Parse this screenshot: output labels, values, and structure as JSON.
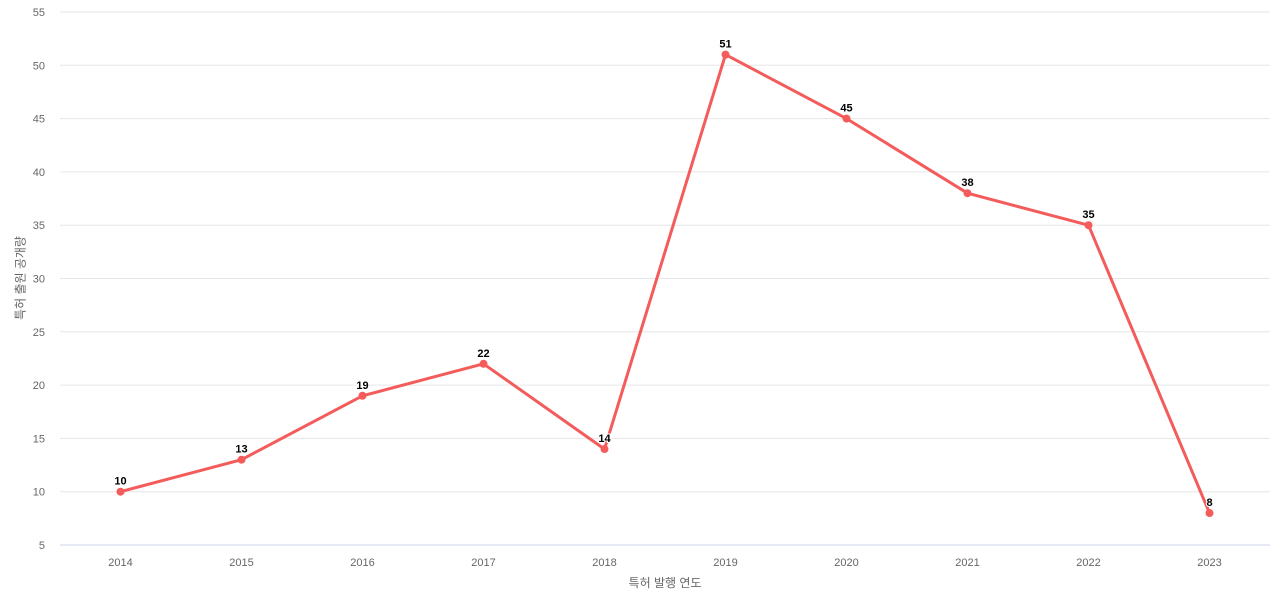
{
  "chart_data": {
    "type": "line",
    "categories": [
      "2014",
      "2015",
      "2016",
      "2017",
      "2018",
      "2019",
      "2020",
      "2021",
      "2022",
      "2023"
    ],
    "values": [
      10,
      13,
      19,
      22,
      14,
      51,
      45,
      38,
      35,
      8
    ],
    "title": "",
    "xlabel": "특허 발행 연도",
    "ylabel": "특허 출원 공개량",
    "ylim": [
      5,
      55
    ],
    "ytick_interval": 5,
    "grid": true,
    "legend_position": "none",
    "data_labels_visible": true,
    "colors": {
      "line": "#f45b5b",
      "marker": "#f45b5b",
      "gridline": "#e6e6e6",
      "axis_line": "#ccd6eb",
      "tick_label": "#666666",
      "data_label": "#000000",
      "background": "#ffffff"
    }
  }
}
